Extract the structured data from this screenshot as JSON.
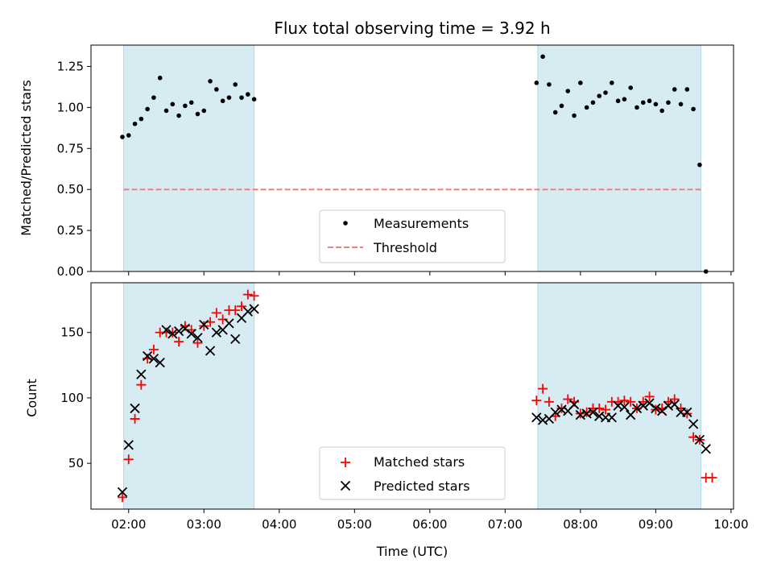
{
  "chart_data": [
    {
      "type": "scatter",
      "title": "Flux total observing time = 3.92 h",
      "xlabel": "",
      "ylabel": "Matched/Predicted stars",
      "ylim": [
        0,
        1.38
      ],
      "yticks": [
        "0.00",
        "0.25",
        "0.50",
        "0.75",
        "1.00",
        "1.25"
      ],
      "ytick_values": [
        0,
        0.25,
        0.5,
        0.75,
        1.0,
        1.25
      ],
      "threshold": 0.5,
      "legend": {
        "placement": "lower-center",
        "entries": [
          "Measurements",
          "Threshold"
        ]
      },
      "shaded_intervals": [
        [
          "01:56",
          "03:40"
        ],
        [
          "07:26",
          "09:36"
        ]
      ],
      "series": [
        {
          "name": "Measurements",
          "color": "#000000",
          "x": [
            "01:55",
            "02:00",
            "02:05",
            "02:10",
            "02:15",
            "02:20",
            "02:25",
            "02:30",
            "02:35",
            "02:40",
            "02:45",
            "02:50",
            "02:55",
            "03:00",
            "03:05",
            "03:10",
            "03:15",
            "03:20",
            "03:25",
            "03:30",
            "03:35",
            "03:40",
            "07:25",
            "07:30",
            "07:35",
            "07:40",
            "07:45",
            "07:50",
            "07:55",
            "08:00",
            "08:05",
            "08:10",
            "08:15",
            "08:20",
            "08:25",
            "08:30",
            "08:35",
            "08:40",
            "08:45",
            "08:50",
            "08:55",
            "09:00",
            "09:05",
            "09:10",
            "09:15",
            "09:20",
            "09:25",
            "09:30",
            "09:35",
            "09:40"
          ],
          "y": [
            0.82,
            0.83,
            0.9,
            0.93,
            0.99,
            1.06,
            1.18,
            0.98,
            1.02,
            0.95,
            1.01,
            1.03,
            0.96,
            0.98,
            1.16,
            1.11,
            1.04,
            1.06,
            1.14,
            1.06,
            1.08,
            1.05,
            1.15,
            1.31,
            1.14,
            0.97,
            1.01,
            1.1,
            0.95,
            1.15,
            1.0,
            1.03,
            1.07,
            1.09,
            1.15,
            1.04,
            1.05,
            1.12,
            1.0,
            1.03,
            1.04,
            1.02,
            0.98,
            1.03,
            1.11,
            1.02,
            1.11,
            0.99,
            0.65,
            0.0
          ]
        }
      ]
    },
    {
      "type": "scatter",
      "title": "",
      "xlabel": "Time (UTC)",
      "ylabel": "Count",
      "ylim": [
        15,
        188
      ],
      "yticks": [
        "50",
        "100",
        "150"
      ],
      "ytick_values": [
        50,
        100,
        150
      ],
      "xticks": [
        "02:00",
        "03:00",
        "04:00",
        "05:00",
        "06:00",
        "07:00",
        "08:00",
        "09:00",
        "10:00"
      ],
      "xlim": [
        "01:30",
        "10:02"
      ],
      "legend": {
        "placement": "lower-center",
        "entries": [
          "Matched stars",
          "Predicted stars"
        ]
      },
      "shaded_intervals": [
        [
          "01:56",
          "03:40"
        ],
        [
          "07:26",
          "09:36"
        ]
      ],
      "series": [
        {
          "name": "Matched stars",
          "color": "#ff0000",
          "x": [
            "01:55",
            "02:00",
            "02:05",
            "02:10",
            "02:15",
            "02:20",
            "02:25",
            "02:30",
            "02:35",
            "02:40",
            "02:45",
            "02:50",
            "02:55",
            "03:00",
            "03:05",
            "03:10",
            "03:15",
            "03:20",
            "03:25",
            "03:30",
            "03:35",
            "03:40",
            "07:25",
            "07:30",
            "07:35",
            "07:40",
            "07:45",
            "07:50",
            "07:55",
            "08:00",
            "08:05",
            "08:10",
            "08:15",
            "08:20",
            "08:25",
            "08:30",
            "08:35",
            "08:40",
            "08:45",
            "08:50",
            "08:55",
            "09:00",
            "09:05",
            "09:10",
            "09:15",
            "09:20",
            "09:25",
            "09:30",
            "09:35",
            "09:40",
            "09:45"
          ],
          "y": [
            24,
            53,
            84,
            110,
            130,
            137,
            150,
            150,
            150,
            143,
            155,
            152,
            142,
            155,
            158,
            165,
            160,
            167,
            167,
            170,
            179,
            178,
            98,
            107,
            97,
            86,
            92,
            99,
            97,
            88,
            89,
            92,
            92,
            91,
            97,
            97,
            98,
            97,
            92,
            97,
            101,
            91,
            92,
            97,
            99,
            92,
            88,
            70,
            68,
            39,
            39
          ]
        },
        {
          "name": "Predicted stars",
          "color": "#000000",
          "x": [
            "01:55",
            "02:00",
            "02:05",
            "02:10",
            "02:15",
            "02:20",
            "02:25",
            "02:30",
            "02:35",
            "02:40",
            "02:45",
            "02:50",
            "02:55",
            "03:00",
            "03:05",
            "03:10",
            "03:15",
            "03:20",
            "03:25",
            "03:30",
            "03:35",
            "03:40",
            "07:25",
            "07:30",
            "07:35",
            "07:40",
            "07:45",
            "07:50",
            "07:55",
            "08:00",
            "08:05",
            "08:10",
            "08:15",
            "08:20",
            "08:25",
            "08:30",
            "08:35",
            "08:40",
            "08:45",
            "08:50",
            "08:55",
            "09:00",
            "09:05",
            "09:10",
            "09:15",
            "09:20",
            "09:25",
            "09:30",
            "09:35",
            "09:40"
          ],
          "y": [
            28,
            64,
            92,
            118,
            132,
            130,
            127,
            152,
            149,
            151,
            153,
            149,
            146,
            156,
            136,
            150,
            152,
            157,
            145,
            161,
            166,
            168,
            85,
            83,
            84,
            89,
            91,
            90,
            95,
            87,
            88,
            89,
            86,
            85,
            85,
            94,
            93,
            87,
            92,
            94,
            96,
            92,
            90,
            94,
            95,
            89,
            89,
            80,
            68,
            61
          ]
        }
      ]
    }
  ]
}
